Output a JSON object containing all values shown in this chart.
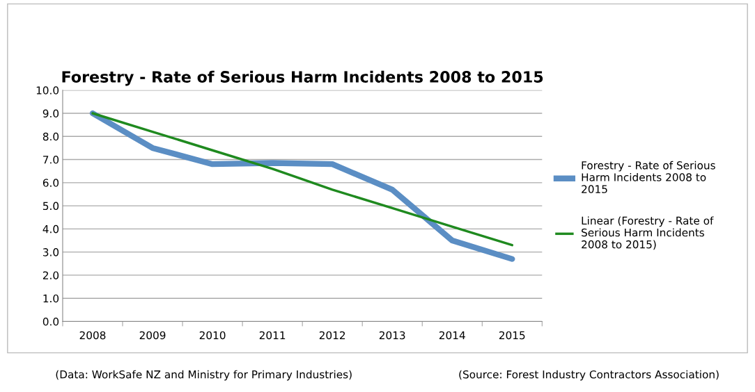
{
  "chart_data": {
    "type": "line",
    "title": "Forestry - Rate of Serious Harm Incidents 2008 to 2015",
    "categories": [
      "2008",
      "2009",
      "2010",
      "2011",
      "2012",
      "2013",
      "2014",
      "2015"
    ],
    "series": [
      {
        "name": "Forestry - Rate of Serious Harm Incidents 2008 to 2015",
        "color": "#5b8ec4",
        "values": [
          9.0,
          7.5,
          6.8,
          6.85,
          6.8,
          5.7,
          3.5,
          2.7
        ]
      },
      {
        "name": "Linear (Forestry - Rate of Serious Harm Incidents 2008 to 2015)",
        "color": "#1f8a1f",
        "values": [
          9.0,
          8.2,
          7.4,
          6.6,
          5.7,
          4.9,
          4.1,
          3.3
        ]
      }
    ],
    "ylim": [
      0,
      10
    ],
    "yticks": [
      {
        "value": 0,
        "label": "0.0"
      },
      {
        "value": 1,
        "label": "1.0"
      },
      {
        "value": 2,
        "label": "2.0"
      },
      {
        "value": 3,
        "label": "3.0"
      },
      {
        "value": 4,
        "label": "4.0"
      },
      {
        "value": 5,
        "label": "5.0"
      },
      {
        "value": 6,
        "label": "6.0"
      },
      {
        "value": 7,
        "label": "7.0"
      },
      {
        "value": 8,
        "label": "8.0"
      },
      {
        "value": 9,
        "label": "9.0"
      },
      {
        "value": 10,
        "label": "10.0"
      }
    ],
    "grid": "y",
    "legend": "right",
    "marker": "none",
    "line_style": "solid",
    "annotations": [
      "(Data: WorkSafe NZ and Ministry for Primary Industries)",
      "(Source: Forest Industry Contractors Association)"
    ]
  }
}
